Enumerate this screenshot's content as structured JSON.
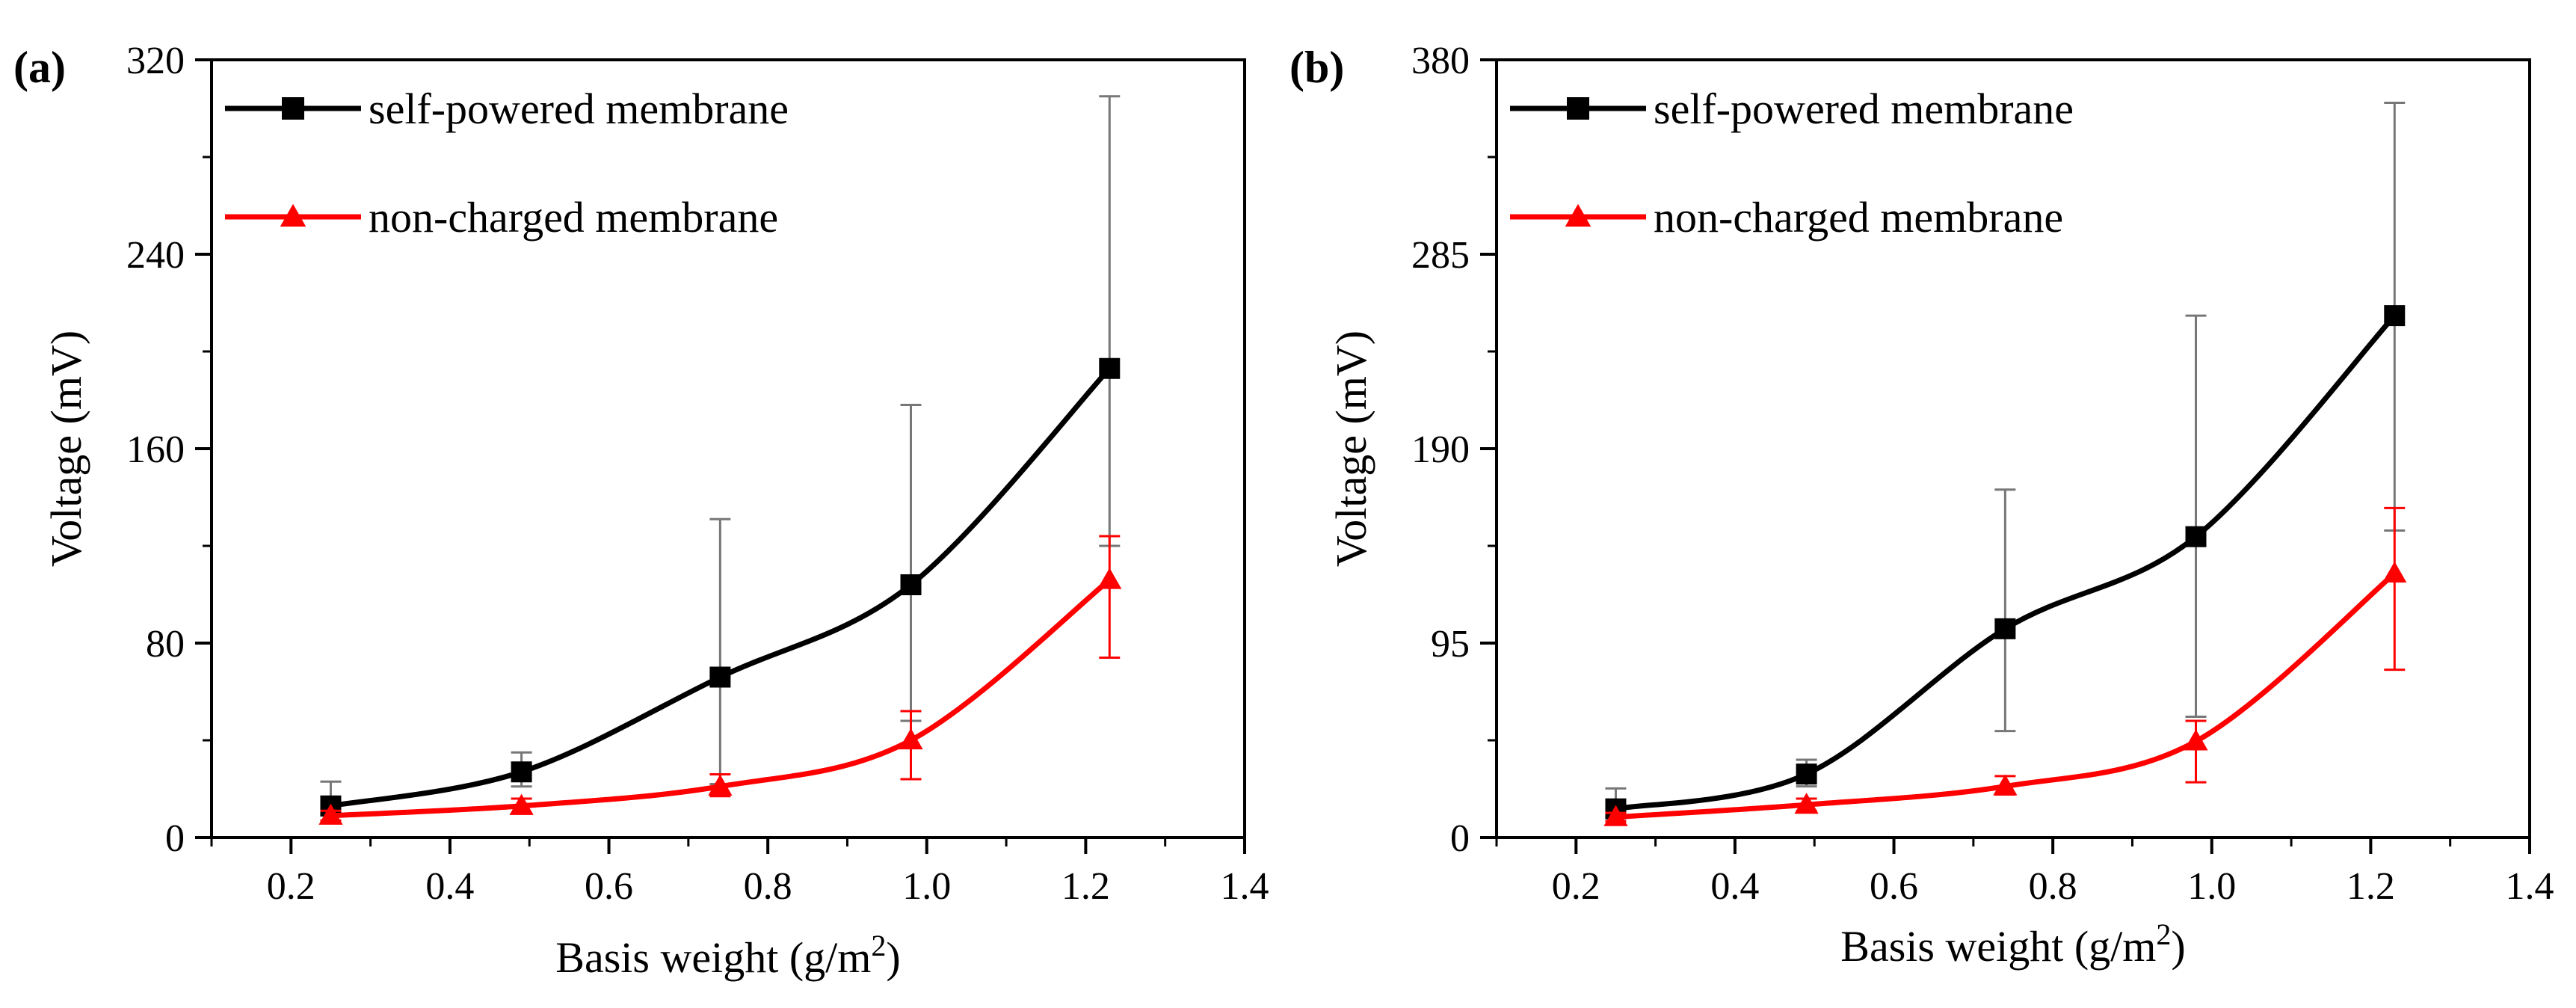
{
  "chart_data": [
    {
      "type": "line",
      "panel_label": "(a)",
      "xlabel": "Basis weight (g/m",
      "xlabel_sup": "2",
      "xlabel_end": ")",
      "ylabel": "Voltage (mV)",
      "xlim": [
        0.1,
        1.4
      ],
      "ylim": [
        0,
        320
      ],
      "xticks": [
        "0.2",
        "0.4",
        "0.6",
        "0.8",
        "1.0",
        "1.2",
        "1.4"
      ],
      "xtick_values": [
        0.2,
        0.4,
        0.6,
        0.8,
        1.0,
        1.2,
        1.4
      ],
      "yticks": [
        "0",
        "80",
        "160",
        "240",
        "320"
      ],
      "ytick_values": [
        0,
        80,
        160,
        240,
        320
      ],
      "legend_position": "top-left",
      "x": [
        0.25,
        0.49,
        0.74,
        0.98,
        1.23
      ],
      "series": [
        {
          "name": "self-powered membrane",
          "color": "#000000",
          "marker": "square",
          "values": [
            13,
            27,
            66,
            104,
            193
          ],
          "err_low": [
            4,
            6,
            44,
            56,
            73
          ],
          "err_high": [
            10,
            8,
            65,
            74,
            112
          ]
        },
        {
          "name": "non-charged membrane",
          "color": "#ff0000",
          "marker": "triangle",
          "values": [
            9,
            13,
            21,
            40,
            106
          ],
          "err_low": [
            2,
            3,
            4,
            16,
            32
          ],
          "err_high": [
            2,
            3,
            5,
            12,
            18
          ]
        }
      ]
    },
    {
      "type": "line",
      "panel_label": "(b)",
      "xlabel": "Basis weight (g/m",
      "xlabel_sup": "2",
      "xlabel_end": ")",
      "ylabel": "Voltage (mV)",
      "xlim": [
        0.1,
        1.4
      ],
      "ylim": [
        0,
        380
      ],
      "xticks": [
        "0.2",
        "0.4",
        "0.6",
        "0.8",
        "1.0",
        "1.2",
        "1.4"
      ],
      "xtick_values": [
        0.2,
        0.4,
        0.6,
        0.8,
        1.0,
        1.2,
        1.4
      ],
      "yticks": [
        "0",
        "95",
        "190",
        "285",
        "380"
      ],
      "ytick_values": [
        0,
        95,
        190,
        285,
        380
      ],
      "legend_position": "top-left",
      "x": [
        0.25,
        0.49,
        0.74,
        0.98,
        1.23
      ],
      "series": [
        {
          "name": "self-powered membrane",
          "color": "#000000",
          "marker": "square",
          "values": [
            14,
            31,
            102,
            147,
            255
          ],
          "err_low": [
            4,
            6,
            50,
            88,
            105
          ],
          "err_high": [
            10,
            7,
            68,
            108,
            104
          ]
        },
        {
          "name": "non-charged membrane",
          "color": "#ff0000",
          "marker": "triangle",
          "values": [
            10,
            16,
            25,
            47,
            129
          ],
          "err_low": [
            2,
            3,
            4,
            20,
            47
          ],
          "err_high": [
            2,
            3,
            5,
            10,
            32
          ]
        }
      ]
    }
  ]
}
